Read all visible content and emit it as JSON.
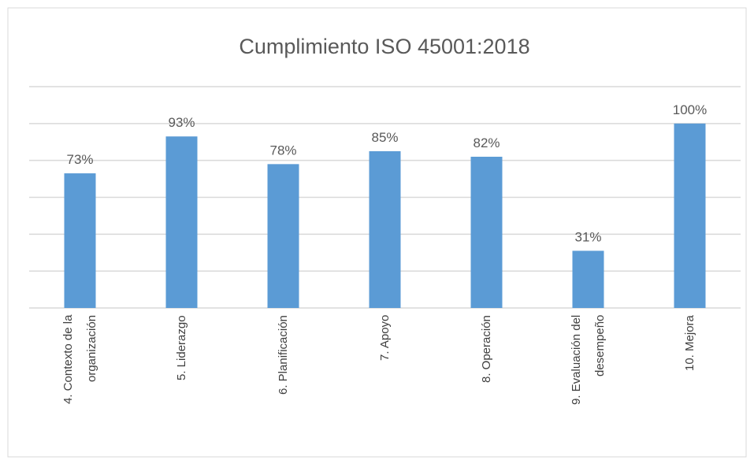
{
  "chart_data": {
    "type": "bar",
    "title": "Cumplimiento ISO 45001:2018",
    "categories": [
      "4. Contexto de la\norganización",
      "5. Liderazgo",
      "6. Planificación",
      "7. Apoyo",
      "8. Operación",
      "9. Evaluación del\ndesempeño",
      "10. Mejora"
    ],
    "values": [
      73,
      93,
      78,
      85,
      82,
      31,
      100
    ],
    "value_labels": [
      "73%",
      "93%",
      "78%",
      "85%",
      "82%",
      "31%",
      "100%"
    ],
    "color": "#5b9bd5",
    "ylim": [
      0,
      120
    ],
    "yticks": [
      0,
      20,
      40,
      60,
      80,
      100,
      120
    ],
    "grid": true
  }
}
